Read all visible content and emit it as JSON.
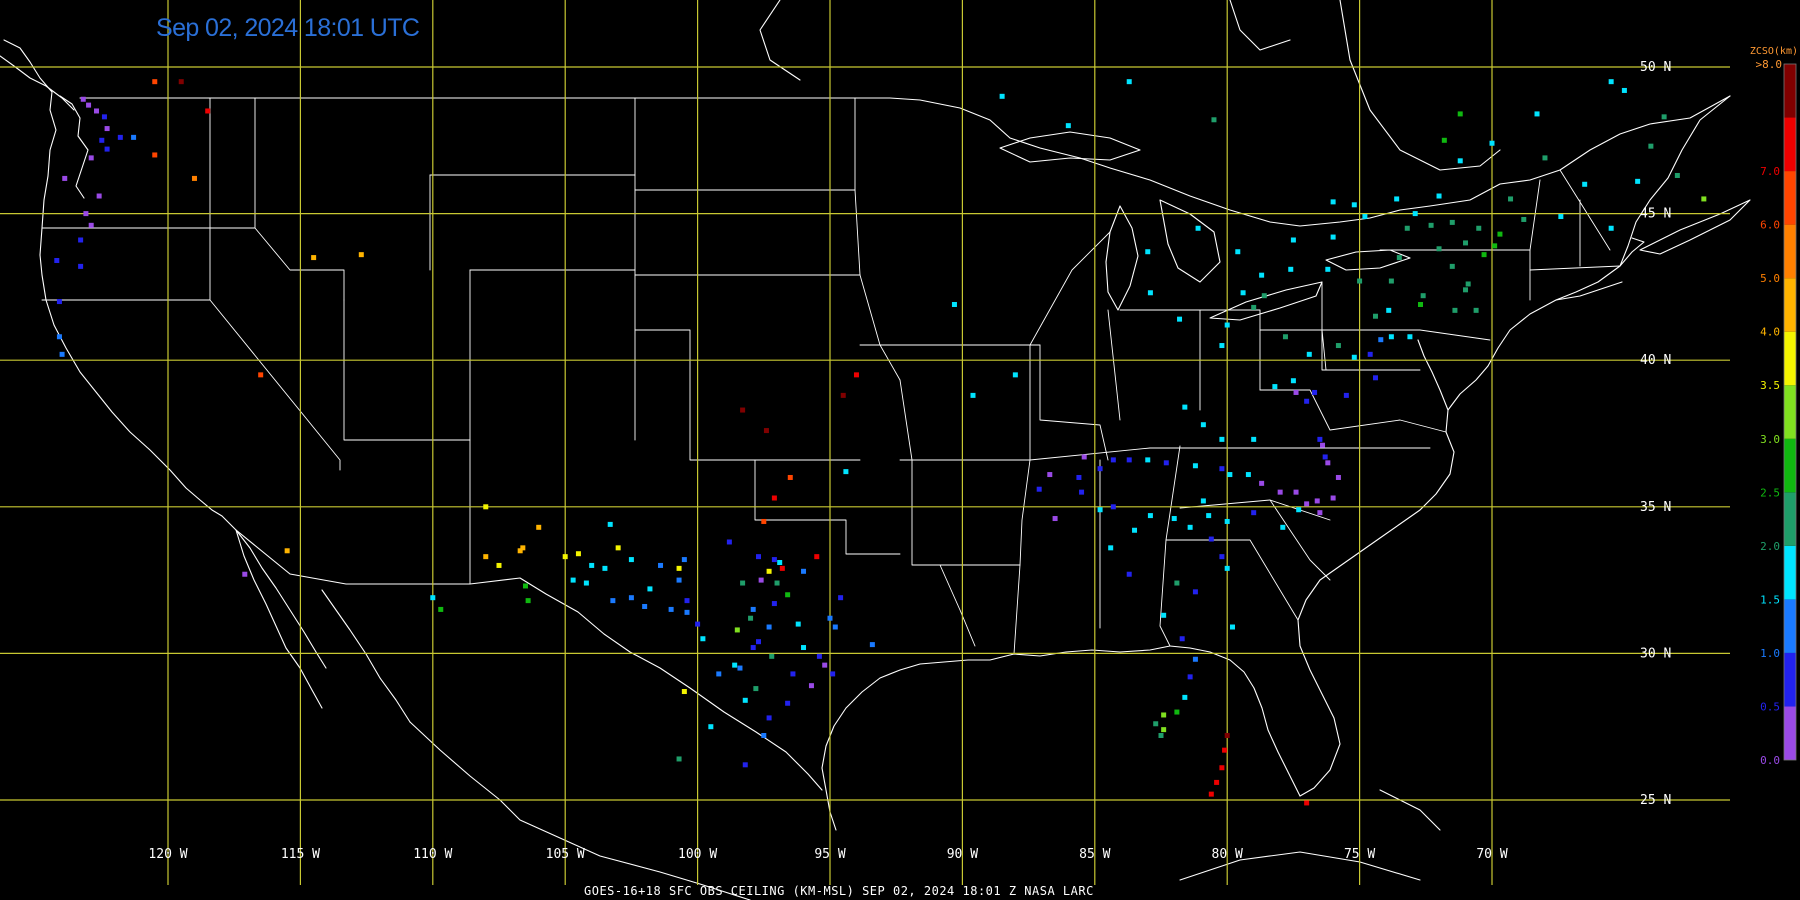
{
  "timestamp": "Sep 02, 2024 18:01 UTC",
  "footer": "GOES-16+18  SFC OBS CEILING (KM-MSL)   SEP 02, 2024 18:01 Z   NASA LARC",
  "colors": {
    "background": "#000000",
    "grid": "#c8c832",
    "borders": "#ffffff",
    "timestamp": "#2a6fd6",
    "grid_label": "#ffffff",
    "legend_title": "#ff9933"
  },
  "grid": {
    "latitudes": [
      {
        "value": 50,
        "label": "50 N"
      },
      {
        "value": 45,
        "label": "45 N"
      },
      {
        "value": 40,
        "label": "40 N"
      },
      {
        "value": 35,
        "label": "35 N"
      },
      {
        "value": 30,
        "label": "30 N"
      },
      {
        "value": 25,
        "label": "25 N"
      }
    ],
    "longitudes": [
      {
        "value": -120,
        "label": "120 W"
      },
      {
        "value": -115,
        "label": "115 W"
      },
      {
        "value": -110,
        "label": "110 W"
      },
      {
        "value": -105,
        "label": "105 W"
      },
      {
        "value": -100,
        "label": "100 W"
      },
      {
        "value": -95,
        "label": "95 W"
      },
      {
        "value": -90,
        "label": "90 W"
      },
      {
        "value": -85,
        "label": "85 W"
      },
      {
        "value": -80,
        "label": "80 W"
      },
      {
        "value": -75,
        "label": "75 W"
      },
      {
        "value": -70,
        "label": "70 W"
      }
    ]
  },
  "legend": {
    "title": "ZCSO(km)",
    "top_label": ">8.0",
    "bins": [
      {
        "label": "0.0",
        "color": "#9a4ae6"
      },
      {
        "label": "0.5",
        "color": "#2222ee"
      },
      {
        "label": "1.0",
        "color": "#1a7aff"
      },
      {
        "label": "1.5",
        "color": "#00e4ff"
      },
      {
        "label": "2.0",
        "color": "#1f9e6a"
      },
      {
        "label": "2.5",
        "color": "#10b810"
      },
      {
        "label": "3.0",
        "color": "#80e020"
      },
      {
        "label": "3.5",
        "color": "#f4f400"
      },
      {
        "label": "4.0",
        "color": "#ffb400"
      },
      {
        "label": "5.0",
        "color": "#ff8000"
      },
      {
        "label": "6.0",
        "color": "#ff4500"
      },
      {
        "label": "7.0",
        "color": "#ee0000"
      },
      {
        "label": "",
        "color": "#800000"
      }
    ]
  },
  "observations": [
    [
      -123.2,
      48.9,
      0
    ],
    [
      -123.0,
      48.7,
      0
    ],
    [
      -122.7,
      48.5,
      0
    ],
    [
      -122.4,
      48.3,
      1
    ],
    [
      -122.3,
      47.9,
      0
    ],
    [
      -122.5,
      47.5,
      1
    ],
    [
      -122.3,
      47.2,
      1
    ],
    [
      -121.8,
      47.6,
      1
    ],
    [
      -122.9,
      46.9,
      0
    ],
    [
      -123.9,
      46.2,
      0
    ],
    [
      -122.6,
      45.6,
      0
    ],
    [
      -123.1,
      45.0,
      0
    ],
    [
      -122.9,
      44.6,
      0
    ],
    [
      -123.3,
      44.1,
      1
    ],
    [
      -124.2,
      43.4,
      1
    ],
    [
      -124.1,
      42.0,
      1
    ],
    [
      -123.3,
      43.2,
      1
    ],
    [
      -124.1,
      40.8,
      2
    ],
    [
      -124.0,
      40.2,
      2
    ],
    [
      -121.3,
      47.6,
      2
    ],
    [
      -118.5,
      48.5,
      11
    ],
    [
      -120.5,
      49.5,
      10
    ],
    [
      -119.5,
      49.5,
      12
    ],
    [
      -120.5,
      47.0,
      10
    ],
    [
      -119.0,
      46.2,
      9
    ],
    [
      -114.5,
      43.5,
      8
    ],
    [
      -112.7,
      43.6,
      8
    ],
    [
      -116.5,
      39.5,
      10
    ],
    [
      -117.1,
      32.7,
      0
    ],
    [
      -115.5,
      33.5,
      8
    ],
    [
      -106.4,
      31.8,
      5
    ],
    [
      -106.5,
      32.3,
      5
    ],
    [
      -104.7,
      32.5,
      3
    ],
    [
      -104.2,
      32.4,
      3
    ],
    [
      -103.2,
      31.8,
      2
    ],
    [
      -102.5,
      31.9,
      2
    ],
    [
      -102.0,
      31.6,
      2
    ],
    [
      -101.8,
      32.2,
      3
    ],
    [
      -101.0,
      31.5,
      2
    ],
    [
      -100.4,
      31.4,
      2
    ],
    [
      -103.5,
      32.9,
      3
    ],
    [
      -104.5,
      33.4,
      7
    ],
    [
      -107.5,
      33.0,
      7
    ],
    [
      -108.0,
      33.3,
      8
    ],
    [
      -106.6,
      33.6,
      8
    ],
    [
      -106.7,
      33.5,
      8
    ],
    [
      -105.0,
      33.3,
      7
    ],
    [
      -104.0,
      33.0,
      3
    ],
    [
      -103.0,
      33.6,
      7
    ],
    [
      -102.5,
      33.2,
      3
    ],
    [
      -101.4,
      33.0,
      2
    ],
    [
      -100.5,
      33.2,
      2
    ],
    [
      -109.7,
      31.5,
      5
    ],
    [
      -106.0,
      34.3,
      8
    ],
    [
      -103.3,
      34.4,
      3
    ],
    [
      -98.8,
      33.8,
      1
    ],
    [
      -97.7,
      33.3,
      1
    ],
    [
      -97.1,
      33.2,
      1
    ],
    [
      -96.9,
      33.1,
      3
    ],
    [
      -97.3,
      32.8,
      7
    ],
    [
      -96.8,
      32.9,
      11
    ],
    [
      -96.0,
      32.8,
      2
    ],
    [
      -97.6,
      32.5,
      0
    ],
    [
      -98.3,
      32.4,
      4
    ],
    [
      -97.0,
      32.4,
      4
    ],
    [
      -96.6,
      32.0,
      5
    ],
    [
      -97.1,
      31.7,
      1
    ],
    [
      -97.9,
      31.5,
      2
    ],
    [
      -96.2,
      31.0,
      3
    ],
    [
      -98.0,
      31.2,
      4
    ],
    [
      -97.3,
      30.9,
      2
    ],
    [
      -98.5,
      30.8,
      6
    ],
    [
      -97.7,
      30.4,
      1
    ],
    [
      -97.9,
      30.2,
      1
    ],
    [
      -98.6,
      29.6,
      3
    ],
    [
      -98.4,
      29.5,
      2
    ],
    [
      -97.2,
      29.9,
      4
    ],
    [
      -96.4,
      29.3,
      1
    ],
    [
      -95.4,
      29.9,
      1
    ],
    [
      -95.2,
      29.6,
      0
    ],
    [
      -94.9,
      29.3,
      1
    ],
    [
      -95.7,
      28.9,
      0
    ],
    [
      -96.6,
      28.3,
      1
    ],
    [
      -97.3,
      27.8,
      1
    ],
    [
      -97.5,
      27.2,
      2
    ],
    [
      -98.2,
      26.2,
      1
    ],
    [
      -99.5,
      27.5,
      3
    ],
    [
      -100.5,
      28.7,
      7
    ],
    [
      -99.2,
      29.3,
      2
    ],
    [
      -99.8,
      30.5,
      3
    ],
    [
      -98.2,
      28.4,
      3
    ],
    [
      -97.8,
      28.8,
      4
    ],
    [
      -95.0,
      31.2,
      2
    ],
    [
      -94.6,
      31.9,
      1
    ],
    [
      -94.8,
      30.9,
      2
    ],
    [
      -96.0,
      30.2,
      3
    ],
    [
      -93.4,
      30.3,
      2
    ],
    [
      -97.5,
      34.5,
      10
    ],
    [
      -97.1,
      35.3,
      11
    ],
    [
      -96.5,
      36.0,
      10
    ],
    [
      -97.4,
      37.6,
      12
    ],
    [
      -98.3,
      38.3,
      12
    ],
    [
      -95.5,
      33.3,
      11
    ],
    [
      -100.4,
      31.8,
      1
    ],
    [
      -100.0,
      31.0,
      1
    ],
    [
      -100.7,
      32.5,
      2
    ],
    [
      -100.7,
      32.9,
      7
    ],
    [
      -100.7,
      26.4,
      4
    ],
    [
      -110.0,
      31.9,
      3
    ],
    [
      -108.0,
      35.0,
      7
    ],
    [
      -94.5,
      38.8,
      12
    ],
    [
      -94.0,
      39.5,
      11
    ],
    [
      -94.4,
      36.2,
      3
    ],
    [
      -90.3,
      41.9,
      3
    ],
    [
      -89.6,
      38.8,
      3
    ],
    [
      -88.0,
      39.5,
      3
    ],
    [
      -87.1,
      35.6,
      1
    ],
    [
      -85.6,
      36.0,
      1
    ],
    [
      -85.4,
      36.7,
      0
    ],
    [
      -86.7,
      36.1,
      0
    ],
    [
      -84.8,
      36.3,
      1
    ],
    [
      -84.3,
      36.6,
      1
    ],
    [
      -83.7,
      36.6,
      1
    ],
    [
      -83.0,
      36.6,
      3
    ],
    [
      -82.3,
      36.5,
      1
    ],
    [
      -81.2,
      36.4,
      3
    ],
    [
      -80.2,
      36.3,
      1
    ],
    [
      -79.9,
      36.1,
      3
    ],
    [
      -79.2,
      36.1,
      3
    ],
    [
      -78.7,
      35.8,
      0
    ],
    [
      -78.0,
      35.5,
      0
    ],
    [
      -77.4,
      35.5,
      0
    ],
    [
      -77.0,
      35.1,
      0
    ],
    [
      -76.6,
      35.2,
      0
    ],
    [
      -76.5,
      34.8,
      0
    ],
    [
      -76.3,
      36.7,
      1
    ],
    [
      -76.5,
      37.3,
      1
    ],
    [
      -76.4,
      37.1,
      0
    ],
    [
      -76.2,
      36.5,
      0
    ],
    [
      -75.8,
      36.0,
      0
    ],
    [
      -76.0,
      35.3,
      0
    ],
    [
      -77.3,
      34.9,
      3
    ],
    [
      -77.9,
      34.3,
      3
    ],
    [
      -79.0,
      34.8,
      1
    ],
    [
      -80.0,
      34.5,
      3
    ],
    [
      -80.9,
      35.2,
      3
    ],
    [
      -80.7,
      34.7,
      3
    ],
    [
      -81.4,
      34.3,
      3
    ],
    [
      -82.0,
      34.6,
      3
    ],
    [
      -82.9,
      34.7,
      3
    ],
    [
      -83.5,
      34.2,
      3
    ],
    [
      -84.4,
      33.6,
      3
    ],
    [
      -84.8,
      34.9,
      3
    ],
    [
      -85.5,
      35.5,
      1
    ],
    [
      -84.3,
      35.0,
      1
    ],
    [
      -86.5,
      34.6,
      0
    ],
    [
      -83.7,
      32.7,
      1
    ],
    [
      -82.4,
      31.3,
      3
    ],
    [
      -81.2,
      32.1,
      1
    ],
    [
      -80.0,
      32.9,
      3
    ],
    [
      -80.6,
      33.9,
      1
    ],
    [
      -81.9,
      32.4,
      4
    ],
    [
      -80.2,
      33.3,
      1
    ],
    [
      -81.7,
      30.5,
      1
    ],
    [
      -81.4,
      29.2,
      1
    ],
    [
      -81.6,
      28.5,
      3
    ],
    [
      -82.4,
      27.9,
      6
    ],
    [
      -82.7,
      27.6,
      4
    ],
    [
      -82.4,
      27.4,
      6
    ],
    [
      -82.5,
      27.2,
      4
    ],
    [
      -81.9,
      28.0,
      5
    ],
    [
      -80.2,
      26.1,
      11
    ],
    [
      -80.1,
      26.7,
      11
    ],
    [
      -80.4,
      25.6,
      11
    ],
    [
      -80.6,
      25.2,
      11
    ],
    [
      -80.0,
      27.2,
      12
    ],
    [
      -77.0,
      24.9,
      11
    ],
    [
      -81.2,
      29.8,
      2
    ],
    [
      -79.8,
      30.9,
      3
    ],
    [
      -79.4,
      42.3,
      3
    ],
    [
      -78.7,
      42.9,
      3
    ],
    [
      -78.6,
      42.2,
      4
    ],
    [
      -77.6,
      43.1,
      3
    ],
    [
      -76.2,
      43.1,
      3
    ],
    [
      -75.0,
      42.7,
      4
    ],
    [
      -73.8,
      42.7,
      4
    ],
    [
      -73.9,
      41.7,
      3
    ],
    [
      -74.4,
      41.5,
      4
    ],
    [
      -73.8,
      40.8,
      3
    ],
    [
      -73.1,
      40.8,
      3
    ],
    [
      -72.7,
      41.9,
      5
    ],
    [
      -71.4,
      41.7,
      4
    ],
    [
      -71.0,
      42.4,
      4
    ],
    [
      -70.6,
      41.7,
      4
    ],
    [
      -70.9,
      42.6,
      4
    ],
    [
      -71.5,
      43.2,
      4
    ],
    [
      -72.3,
      44.6,
      4
    ],
    [
      -73.2,
      44.5,
      4
    ],
    [
      -72.6,
      42.2,
      4
    ],
    [
      -73.5,
      43.5,
      4
    ],
    [
      -70.3,
      43.6,
      5
    ],
    [
      -69.7,
      44.3,
      5
    ],
    [
      -68.8,
      44.8,
      4
    ],
    [
      -68.0,
      46.9,
      4
    ],
    [
      -69.3,
      45.5,
      4
    ],
    [
      -71.0,
      44.0,
      4
    ],
    [
      -70.5,
      44.5,
      4
    ],
    [
      -71.5,
      44.7,
      4
    ],
    [
      -69.9,
      43.9,
      5
    ],
    [
      -67.4,
      44.9,
      3
    ],
    [
      -72.0,
      43.8,
      4
    ],
    [
      -74.8,
      44.9,
      3
    ],
    [
      -76.0,
      44.2,
      3
    ],
    [
      -77.5,
      44.1,
      3
    ],
    [
      -79.6,
      43.7,
      3
    ],
    [
      -81.1,
      44.5,
      3
    ],
    [
      -83.0,
      43.7,
      3
    ],
    [
      -82.9,
      42.3,
      3
    ],
    [
      -81.8,
      41.4,
      3
    ],
    [
      -80.2,
      40.5,
      3
    ],
    [
      -80.0,
      41.2,
      3
    ],
    [
      -79.0,
      41.8,
      4
    ],
    [
      -77.8,
      40.8,
      4
    ],
    [
      -76.9,
      40.2,
      3
    ],
    [
      -75.2,
      40.1,
      3
    ],
    [
      -75.8,
      40.5,
      4
    ],
    [
      -74.2,
      40.7,
      2
    ],
    [
      -74.6,
      40.2,
      1
    ],
    [
      -74.4,
      39.4,
      1
    ],
    [
      -75.5,
      38.8,
      1
    ],
    [
      -76.7,
      38.9,
      1
    ],
    [
      -77.4,
      38.9,
      0
    ],
    [
      -77.0,
      38.6,
      1
    ],
    [
      -77.5,
      39.3,
      3
    ],
    [
      -78.2,
      39.1,
      3
    ],
    [
      -79.0,
      37.3,
      3
    ],
    [
      -80.9,
      37.8,
      3
    ],
    [
      -81.6,
      38.4,
      3
    ],
    [
      -80.2,
      37.3,
      3
    ],
    [
      -88.5,
      49.0,
      3
    ],
    [
      -86.0,
      48.0,
      3
    ],
    [
      -83.7,
      49.5,
      3
    ],
    [
      -80.5,
      48.2,
      4
    ],
    [
      -76.0,
      45.4,
      3
    ],
    [
      -75.2,
      45.3,
      3
    ],
    [
      -73.6,
      45.5,
      3
    ],
    [
      -72.0,
      45.6,
      3
    ],
    [
      -71.2,
      46.8,
      3
    ],
    [
      -70.0,
      47.4,
      3
    ],
    [
      -68.3,
      48.4,
      3
    ],
    [
      -65.0,
      49.2,
      3
    ],
    [
      -66.5,
      46.0,
      3
    ],
    [
      -64.5,
      46.1,
      3
    ],
    [
      -63.0,
      46.3,
      4
    ],
    [
      -64.0,
      47.3,
      4
    ],
    [
      -62.0,
      45.5,
      6
    ],
    [
      -63.5,
      48.3,
      4
    ],
    [
      -65.5,
      49.5,
      3
    ],
    [
      -65.5,
      44.5,
      3
    ],
    [
      -71.8,
      47.5,
      5
    ],
    [
      -71.2,
      48.4,
      5
    ],
    [
      -72.9,
      45.0,
      3
    ]
  ]
}
